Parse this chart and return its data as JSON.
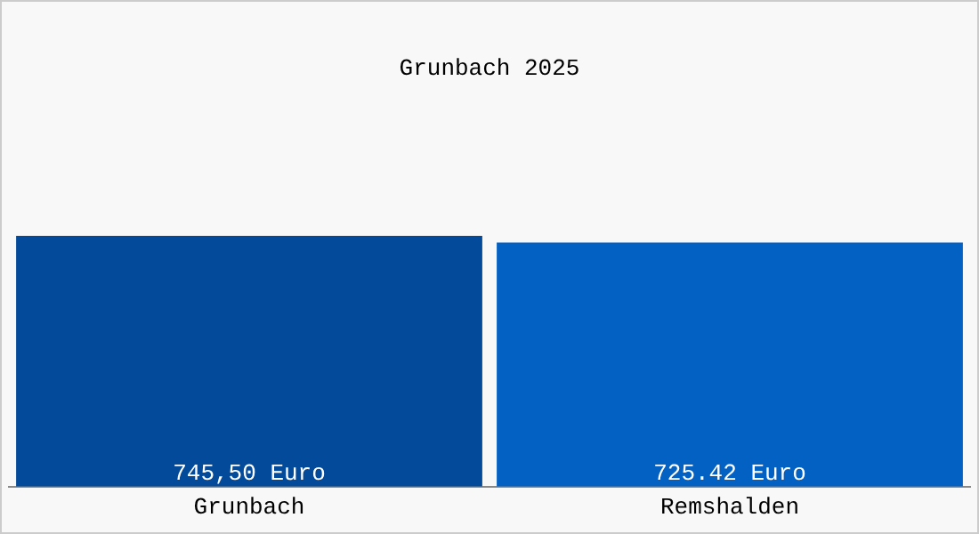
{
  "chart_data": {
    "type": "bar",
    "title": "Grunbach 2025",
    "categories": [
      "Grunbach",
      "Remshalden"
    ],
    "values": [
      745.5,
      725.42
    ],
    "colors": [
      "#034a9a",
      "#0461c4"
    ],
    "value_labels": [
      "745,50 Euro",
      "725.42 Euro"
    ],
    "grid": false,
    "legend": false
  }
}
